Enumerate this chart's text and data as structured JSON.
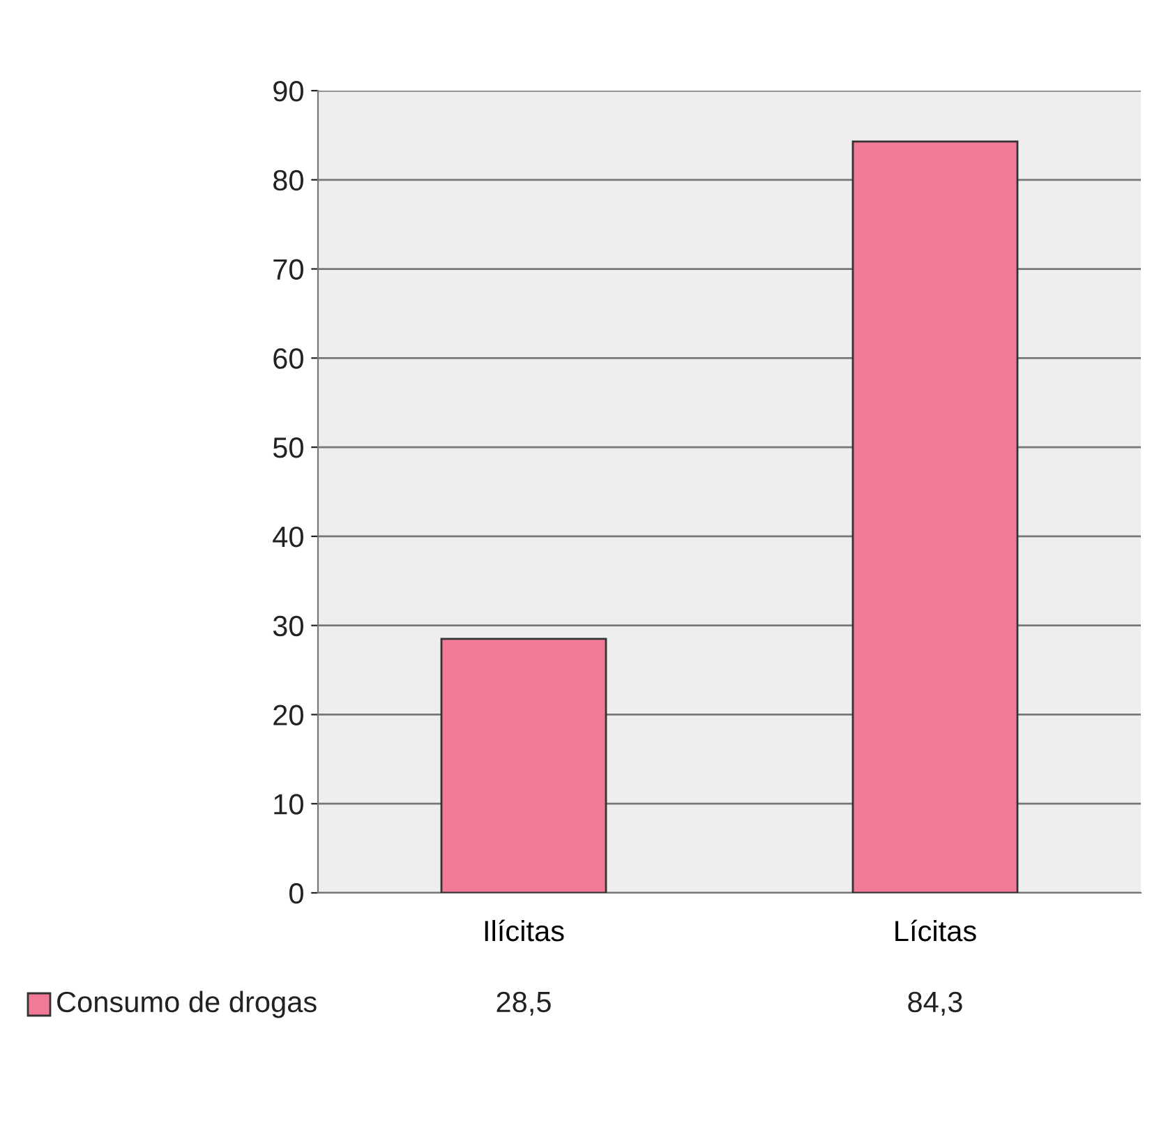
{
  "chart_data": {
    "type": "bar",
    "categories": [
      "Ilícitas",
      "Lícitas"
    ],
    "series": [
      {
        "name": "Consumo de drogas",
        "color": "#f27a96",
        "values": [
          28.5,
          84.3
        ],
        "value_labels": [
          "28,5",
          "84,3"
        ]
      }
    ],
    "ylim": [
      0,
      90
    ],
    "yticks": [
      0,
      10,
      20,
      30,
      40,
      50,
      60,
      70,
      80,
      90
    ],
    "grid": "y",
    "legend": "bottom left"
  }
}
